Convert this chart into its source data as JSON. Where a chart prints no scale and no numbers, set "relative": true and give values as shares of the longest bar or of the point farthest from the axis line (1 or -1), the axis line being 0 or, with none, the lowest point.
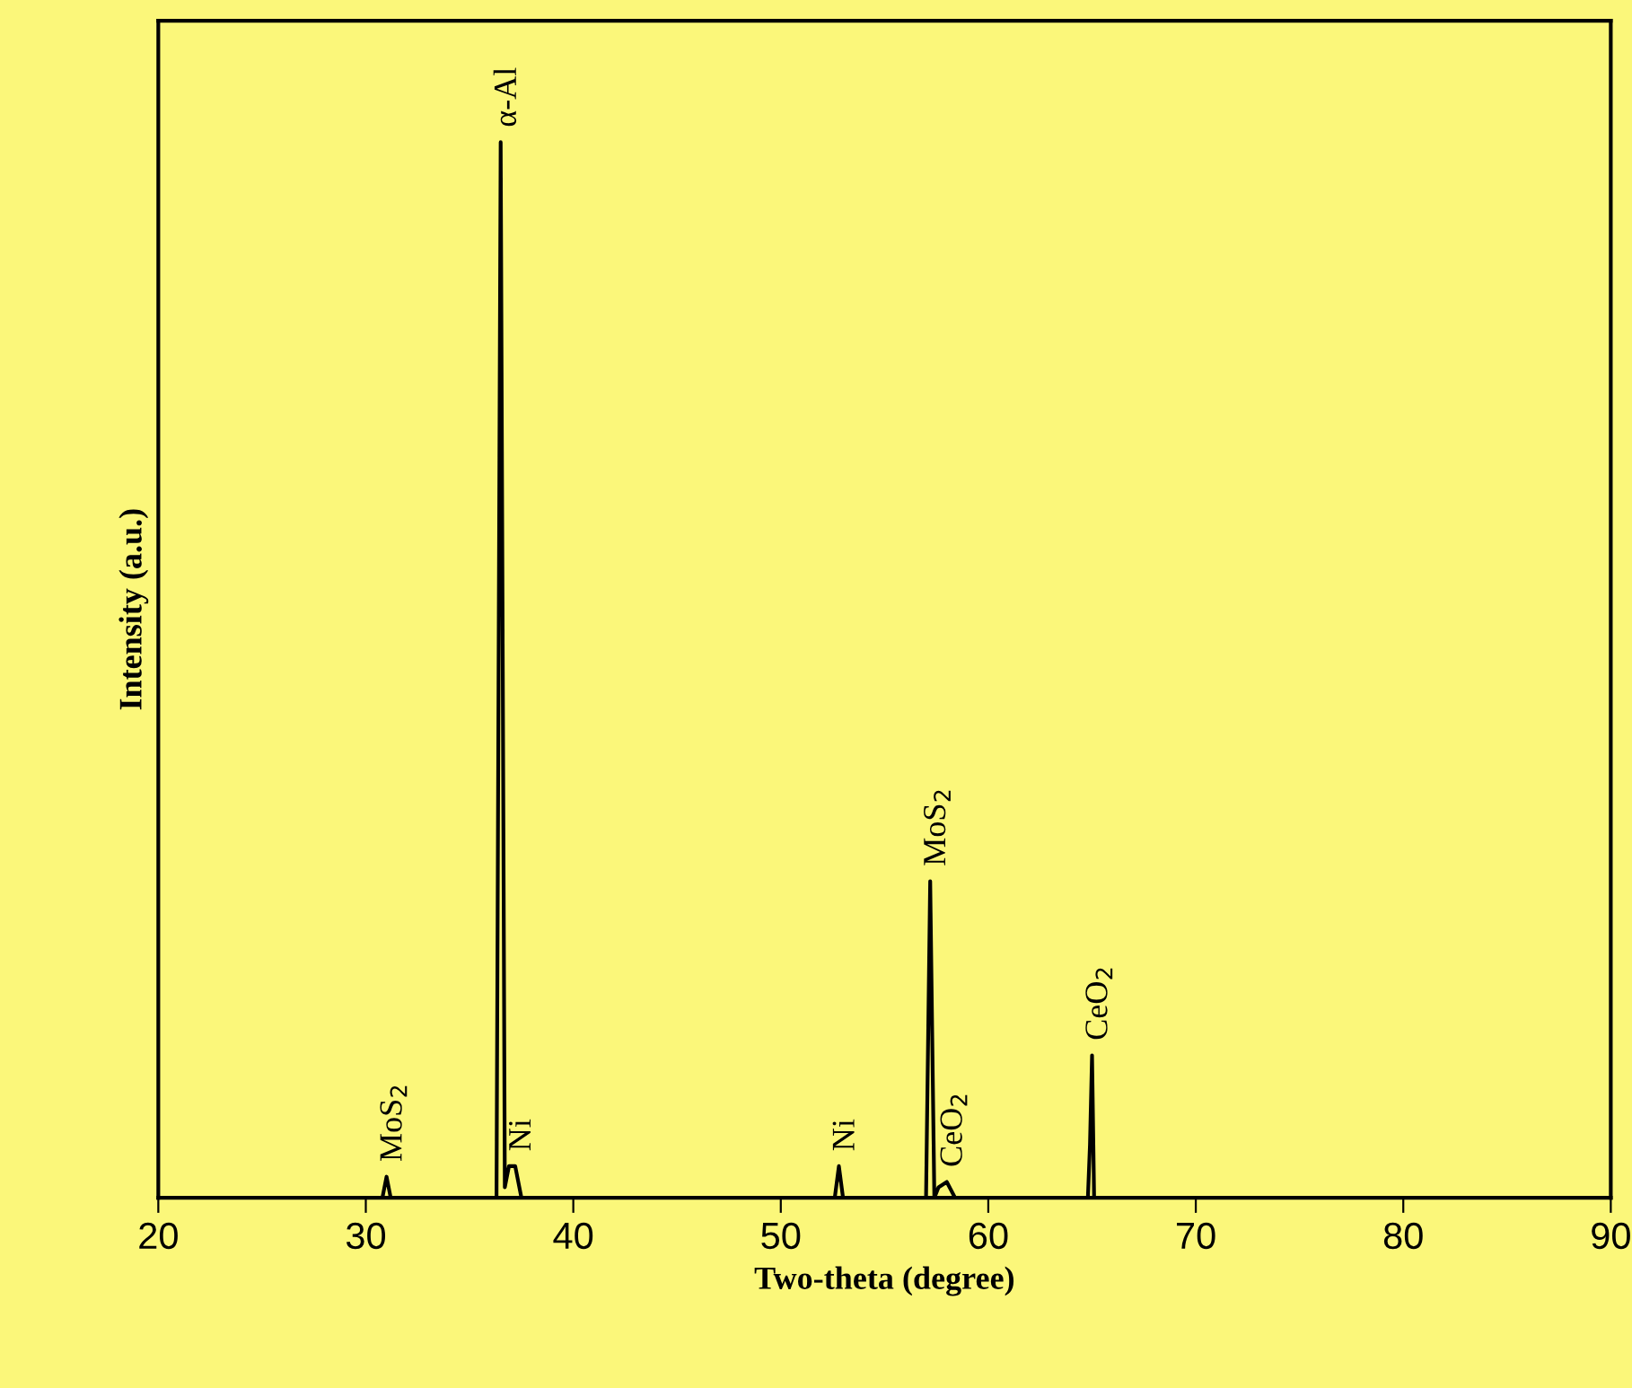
{
  "chart_data": {
    "type": "line",
    "relative": true,
    "xlabel": "Two-theta (degree)",
    "ylabel": "Intensity (a.u.)",
    "xlim": [
      20,
      90
    ],
    "xticks": [
      20,
      30,
      40,
      50,
      60,
      70,
      80,
      90
    ],
    "tick_labels": "x",
    "grid": false,
    "marker": "none",
    "line_style": "solid",
    "series": [
      {
        "color": "#000000",
        "x": [
          25,
          30.8,
          31.0,
          31.2,
          36.3,
          36.5,
          36.7,
          36.9,
          37.2,
          37.5,
          52.6,
          52.8,
          53.0,
          57.0,
          57.2,
          57.4,
          57.6,
          58.0,
          58.4,
          64.8,
          64.9,
          65.0,
          65.1,
          85
        ],
        "values": [
          0,
          0,
          0.02,
          0,
          0,
          1.0,
          0.01,
          0.03,
          0.03,
          0,
          0,
          0.03,
          0,
          0,
          0.3,
          0,
          0.01,
          0.015,
          0,
          0,
          0.05,
          0.135,
          0,
          0
        ]
      }
    ],
    "annotations": [
      {
        "text": "MoS$_{2}$",
        "x": 31.0,
        "y": 0.02
      },
      {
        "text": "α-Al",
        "x": 36.5,
        "y": 1.0
      },
      {
        "text": "Ni",
        "x": 37.2,
        "y": 0.03
      },
      {
        "text": "Ni",
        "x": 52.8,
        "y": 0.03
      },
      {
        "text": "MoS$_{2}$",
        "x": 57.2,
        "y": 0.3
      },
      {
        "text": "CeO$_{2}$",
        "x": 58.0,
        "y": 0.015
      },
      {
        "text": "CeO$_{2}$",
        "x": 65.0,
        "y": 0.135
      }
    ]
  }
}
